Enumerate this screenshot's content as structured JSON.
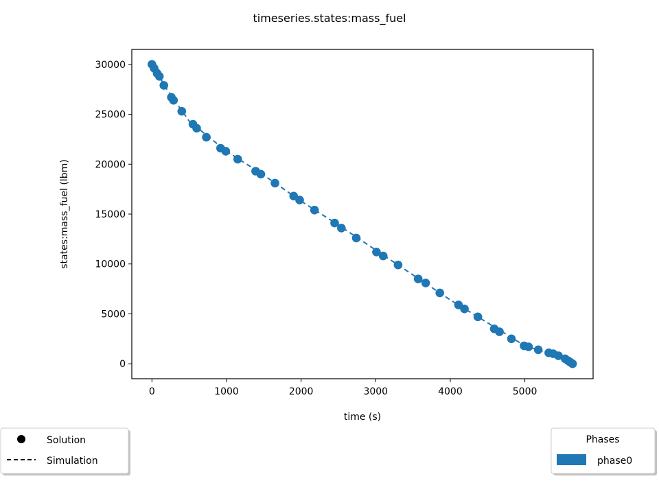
{
  "chart_data": {
    "type": "scatter",
    "title": "timeseries.states:mass_fuel",
    "xlabel": "time (s)",
    "ylabel": "states:mass_fuel (lbm)",
    "xlim": [
      -270,
      5915
    ],
    "ylim": [
      -1500,
      31500
    ],
    "xticks": [
      0,
      1000,
      2000,
      3000,
      4000,
      5000
    ],
    "yticks": [
      0,
      5000,
      10000,
      15000,
      20000,
      25000,
      30000
    ],
    "grid": false,
    "colors": {
      "series": "#1f77b4",
      "axis": "#000000",
      "legend_edge": "#cccccc"
    },
    "series": [
      {
        "name": "Solution",
        "style": "markers",
        "x": [
          0,
          30,
          70,
          100,
          160,
          260,
          290,
          400,
          550,
          600,
          730,
          920,
          990,
          1150,
          1390,
          1460,
          1650,
          1900,
          1980,
          2180,
          2450,
          2540,
          2740,
          3010,
          3100,
          3300,
          3570,
          3670,
          3860,
          4110,
          4190,
          4370,
          4590,
          4660,
          4820,
          4990,
          5050,
          5180,
          5320,
          5380,
          5450,
          5540,
          5580,
          5610,
          5640
        ],
        "y": [
          30000,
          29600,
          29100,
          28800,
          27900,
          26700,
          26400,
          25300,
          24000,
          23600,
          22700,
          21600,
          21300,
          20500,
          19300,
          19000,
          18100,
          16800,
          16400,
          15400,
          14100,
          13600,
          12600,
          11200,
          10800,
          9900,
          8500,
          8100,
          7100,
          5900,
          5500,
          4700,
          3500,
          3200,
          2500,
          1800,
          1700,
          1400,
          1100,
          1000,
          800,
          500,
          300,
          150,
          0
        ]
      },
      {
        "name": "Simulation",
        "style": "dashed",
        "x": [
          0,
          200,
          500,
          1000,
          1500,
          2000,
          2500,
          3000,
          3500,
          4000,
          4500,
          5000,
          5300,
          5640
        ],
        "y": [
          30000,
          27500,
          24300,
          21300,
          18900,
          16300,
          13900,
          11400,
          8900,
          6400,
          4100,
          1800,
          1100,
          0
        ]
      }
    ],
    "legend": {
      "placement": "bottom-left",
      "entries": [
        {
          "label": "Solution",
          "marker": "circle"
        },
        {
          "label": "Simulation",
          "marker": "dashed-line"
        }
      ]
    },
    "phases_legend": {
      "placement": "bottom-right",
      "title": "Phases",
      "entries": [
        {
          "label": "phase0",
          "color": "#1f77b4"
        }
      ]
    }
  }
}
